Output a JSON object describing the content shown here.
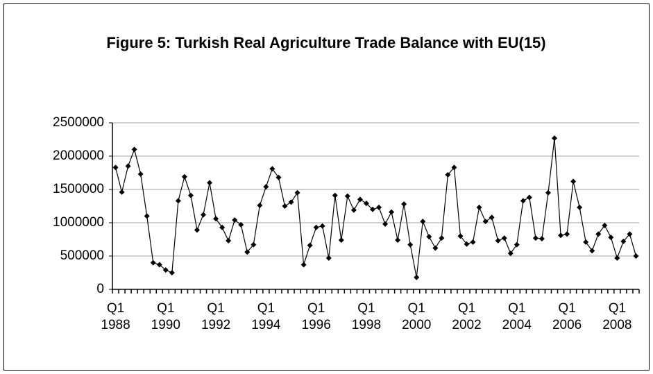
{
  "chart_data": {
    "type": "line",
    "title": "Figure 5: Turkish Real Agriculture Trade Balance with EU(15)",
    "categories": [
      "Q1 1988",
      null,
      null,
      null,
      null,
      null,
      null,
      null,
      "Q1 1990",
      null,
      null,
      null,
      null,
      null,
      null,
      null,
      "Q1 1992",
      null,
      null,
      null,
      null,
      null,
      null,
      null,
      "Q1 1994",
      null,
      null,
      null,
      null,
      null,
      null,
      null,
      "Q1 1996",
      null,
      null,
      null,
      null,
      null,
      null,
      null,
      "Q1 1998",
      null,
      null,
      null,
      null,
      null,
      null,
      null,
      "Q1 2000",
      null,
      null,
      null,
      null,
      null,
      null,
      null,
      "Q1 2002",
      null,
      null,
      null,
      null,
      null,
      null,
      null,
      "Q1 2004",
      null,
      null,
      null,
      null,
      null,
      null,
      null,
      "Q1 2006",
      null,
      null,
      null,
      null,
      null,
      null,
      null,
      "Q1 2008",
      null,
      null,
      null
    ],
    "values": [
      1830000,
      1460000,
      1850000,
      2100000,
      1730000,
      1100000,
      400000,
      370000,
      290000,
      250000,
      1330000,
      1690000,
      1410000,
      890000,
      1120000,
      1600000,
      1060000,
      930000,
      730000,
      1040000,
      970000,
      560000,
      670000,
      1260000,
      1540000,
      1810000,
      1680000,
      1250000,
      1310000,
      1450000,
      370000,
      660000,
      930000,
      950000,
      470000,
      1410000,
      740000,
      1400000,
      1190000,
      1350000,
      1290000,
      1200000,
      1230000,
      980000,
      1160000,
      740000,
      1280000,
      670000,
      180000,
      1020000,
      790000,
      620000,
      770000,
      1720000,
      1830000,
      800000,
      680000,
      710000,
      1230000,
      1020000,
      1080000,
      730000,
      770000,
      540000,
      670000,
      1330000,
      1380000,
      770000,
      760000,
      1450000,
      2270000,
      810000,
      830000,
      1620000,
      1230000,
      710000,
      580000,
      830000,
      960000,
      780000,
      470000,
      720000,
      830000,
      500000
    ],
    "color": "#000000",
    "ylim": [
      0,
      2500000
    ],
    "yticks": [
      0,
      500000,
      1000000,
      1500000,
      2000000,
      2500000
    ],
    "grid": true
  }
}
